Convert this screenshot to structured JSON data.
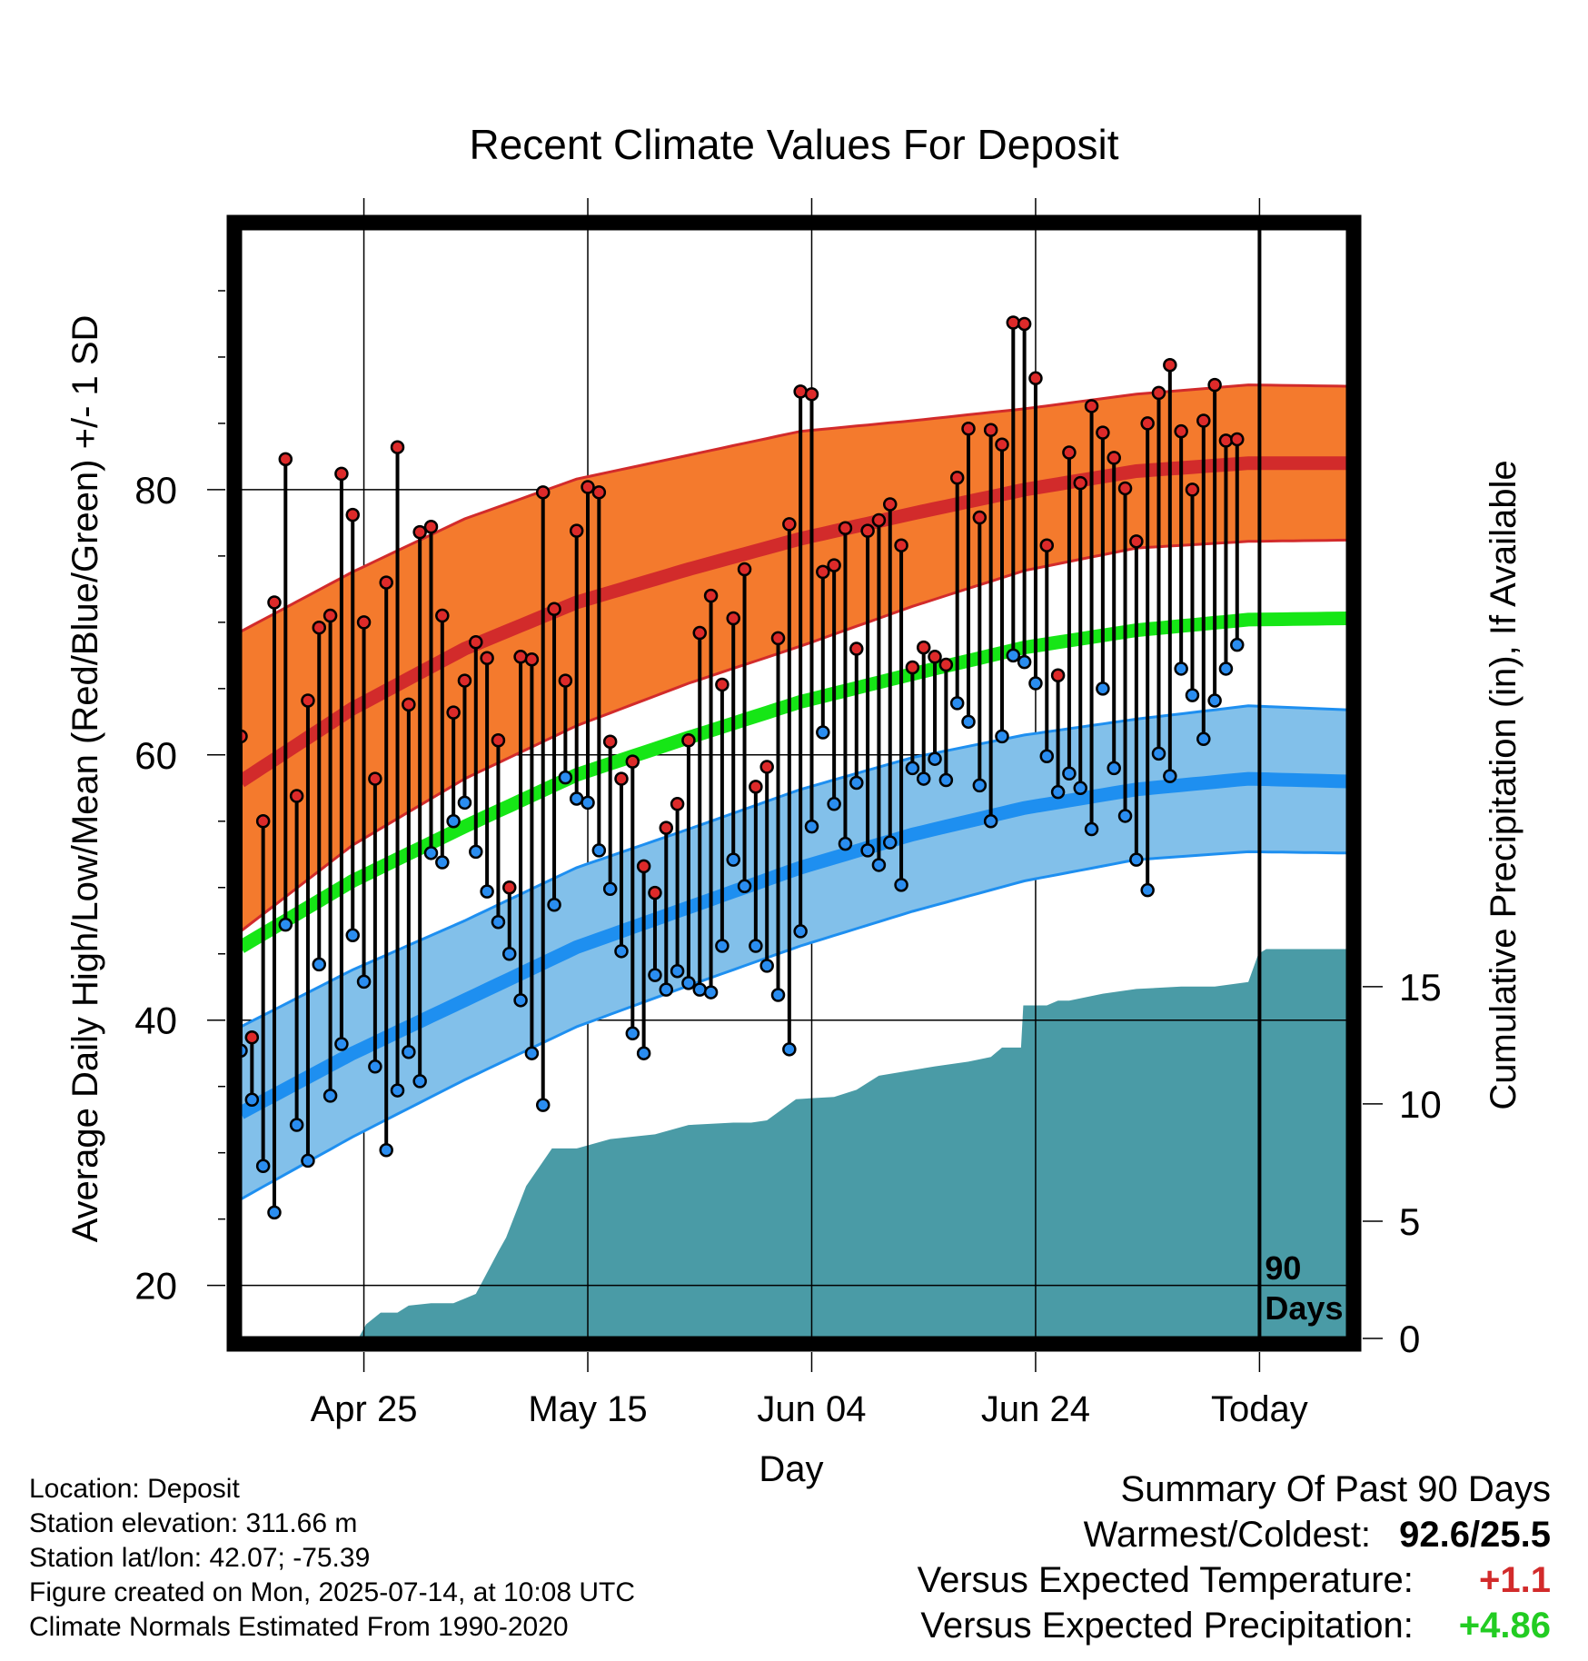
{
  "chart_data": {
    "type": "line",
    "title": "Recent Climate Values For Deposit",
    "xlabel": "Day",
    "ylabel": "Average Daily High/Low/Mean (Red/Blue/Green) +/- 1 SD",
    "y2label": "Cumulative Precipitation (in), If Available",
    "ylim": [
      16,
      100
    ],
    "y2lim": [
      0,
      47.5
    ],
    "yticks": [
      "20",
      "40",
      "60",
      "80"
    ],
    "y2ticks": [
      "0",
      "5",
      "10",
      "15"
    ],
    "xlim": [
      0,
      99
    ],
    "xticks": [
      {
        "day": 11,
        "label": "Apr 25"
      },
      {
        "day": 31,
        "label": "May 15"
      },
      {
        "day": 51,
        "label": "Jun 04"
      },
      {
        "day": 71,
        "label": "Jun 24"
      },
      {
        "day": 91,
        "label": "Today"
      }
    ],
    "grid": true,
    "today_day": 91,
    "today_note": [
      "90",
      "Days"
    ],
    "colors": {
      "high": "#d22b2b",
      "high_band": "#f47a2d",
      "low": "#1e8ff0",
      "low_band": "#82c0ea",
      "mean": "#16e616",
      "precip": "#4a9ba6",
      "high_marker": "#dd2a2a",
      "low_marker": "#2a8df0"
    },
    "normals": {
      "days": [
        0,
        10,
        20,
        30,
        40,
        50,
        60,
        70,
        80,
        90,
        99
      ],
      "high": [
        58.0,
        63.5,
        68.0,
        71.5,
        74.0,
        76.3,
        78.2,
        80.0,
        81.4,
        82.0,
        82.0
      ],
      "high_sd": [
        11.3,
        10.3,
        9.8,
        9.3,
        8.6,
        8.1,
        7.0,
        6.1,
        5.8,
        5.9,
        5.8
      ],
      "low": [
        33.0,
        37.5,
        41.5,
        45.5,
        48.5,
        51.5,
        54.0,
        56.0,
        57.4,
        58.2,
        58.0
      ],
      "low_sd": [
        6.5,
        6.3,
        6.0,
        6.0,
        5.9,
        5.9,
        5.8,
        5.5,
        5.3,
        5.5,
        5.4
      ],
      "mean": [
        45.5,
        50.5,
        54.6,
        58.5,
        61.3,
        64.0,
        66.1,
        68.1,
        69.4,
        70.2,
        70.3
      ]
    },
    "daily": {
      "start_day": 0,
      "high": [
        61.4,
        38.7,
        55.0,
        71.5,
        82.3,
        56.9,
        64.1,
        69.6,
        70.5,
        81.2,
        78.1,
        70.0,
        58.2,
        73.0,
        83.2,
        63.8,
        76.8,
        77.2,
        70.5,
        63.2,
        65.6,
        68.5,
        67.3,
        61.1,
        50.0,
        67.4,
        67.2,
        79.8,
        71.0,
        65.6,
        76.9,
        80.2,
        79.8,
        61.0,
        58.2,
        59.5,
        51.6,
        49.6,
        54.5,
        56.3,
        61.1,
        69.2,
        72.0,
        65.3,
        70.3,
        74.0,
        57.6,
        59.1,
        68.8,
        77.4,
        87.4,
        87.2,
        73.8,
        74.3,
        77.1,
        68.0,
        76.9,
        77.7,
        78.9,
        75.8,
        66.6,
        68.1,
        67.4,
        66.8,
        80.9,
        84.6,
        77.9,
        84.5,
        83.4,
        92.6,
        92.5,
        88.4,
        75.8,
        66.0,
        82.8,
        80.5,
        86.3,
        84.3,
        82.4,
        80.1,
        76.1,
        85.0,
        87.3,
        89.4,
        84.4,
        80.0,
        85.2,
        87.9,
        83.7,
        83.8
      ],
      "low": [
        37.7,
        34.0,
        29.0,
        25.5,
        47.2,
        32.1,
        29.4,
        44.2,
        34.3,
        38.2,
        46.4,
        42.9,
        36.5,
        30.2,
        34.7,
        37.6,
        35.4,
        52.6,
        51.9,
        55.0,
        56.4,
        52.7,
        49.7,
        47.4,
        45.0,
        41.5,
        37.5,
        33.6,
        48.7,
        58.3,
        56.7,
        56.4,
        52.8,
        49.9,
        45.2,
        39.0,
        37.5,
        43.4,
        42.3,
        43.7,
        42.8,
        42.3,
        42.1,
        45.6,
        52.1,
        50.1,
        45.6,
        44.1,
        41.9,
        37.8,
        46.7,
        54.6,
        61.7,
        56.3,
        53.3,
        57.9,
        52.8,
        51.7,
        53.4,
        50.2,
        59.0,
        58.2,
        59.7,
        58.1,
        63.9,
        62.5,
        57.7,
        55.0,
        61.4,
        67.5,
        67.0,
        65.4,
        59.9,
        57.2,
        58.6,
        57.5,
        54.4,
        65.0,
        59.0,
        55.4,
        52.1,
        49.8,
        60.1,
        58.4,
        66.5,
        64.5,
        61.2,
        64.1,
        66.5,
        68.3
      ]
    },
    "precip": {
      "days": [
        0,
        10.5,
        11.2,
        12.5,
        14,
        15,
        17,
        19,
        21,
        23,
        23.7,
        25.5,
        27.8,
        30,
        33,
        37,
        40,
        44,
        45.6,
        47,
        49.6,
        53,
        55,
        57,
        62,
        65,
        67,
        68,
        69.7,
        69.9,
        72,
        73,
        74,
        77,
        80,
        84,
        87,
        90,
        90.9,
        91.6,
        99
      ],
      "values": [
        0,
        0,
        0.6,
        1.1,
        1.1,
        1.4,
        1.5,
        1.5,
        1.9,
        3.7,
        4.3,
        6.5,
        8.1,
        8.1,
        8.5,
        8.7,
        9.1,
        9.2,
        9.2,
        9.3,
        10.2,
        10.3,
        10.6,
        11.2,
        11.6,
        11.8,
        12.0,
        12.4,
        12.4,
        14.2,
        14.2,
        14.4,
        14.4,
        14.7,
        14.9,
        15.0,
        15.0,
        15.2,
        16.4,
        16.6,
        16.6
      ]
    }
  },
  "info": {
    "location": "Location: Deposit",
    "elevation": "Station elevation: 311.66 m",
    "latlon": "Station lat/lon: 42.07; -75.39",
    "created": "Figure created on Mon, 2025-07-14, at 10:08 UTC",
    "normals": "Climate Normals Estimated From 1990-2020"
  },
  "summary": {
    "title": "Summary Of Past 90 Days",
    "warmest_coldest_label": "Warmest/Coldest:",
    "warmest_coldest_value": "92.6/25.5",
    "temp_label": "Versus Expected Temperature:",
    "temp_value": "+1.1",
    "precip_label": "Versus Expected Precipitation:",
    "precip_value": "+4.86"
  }
}
